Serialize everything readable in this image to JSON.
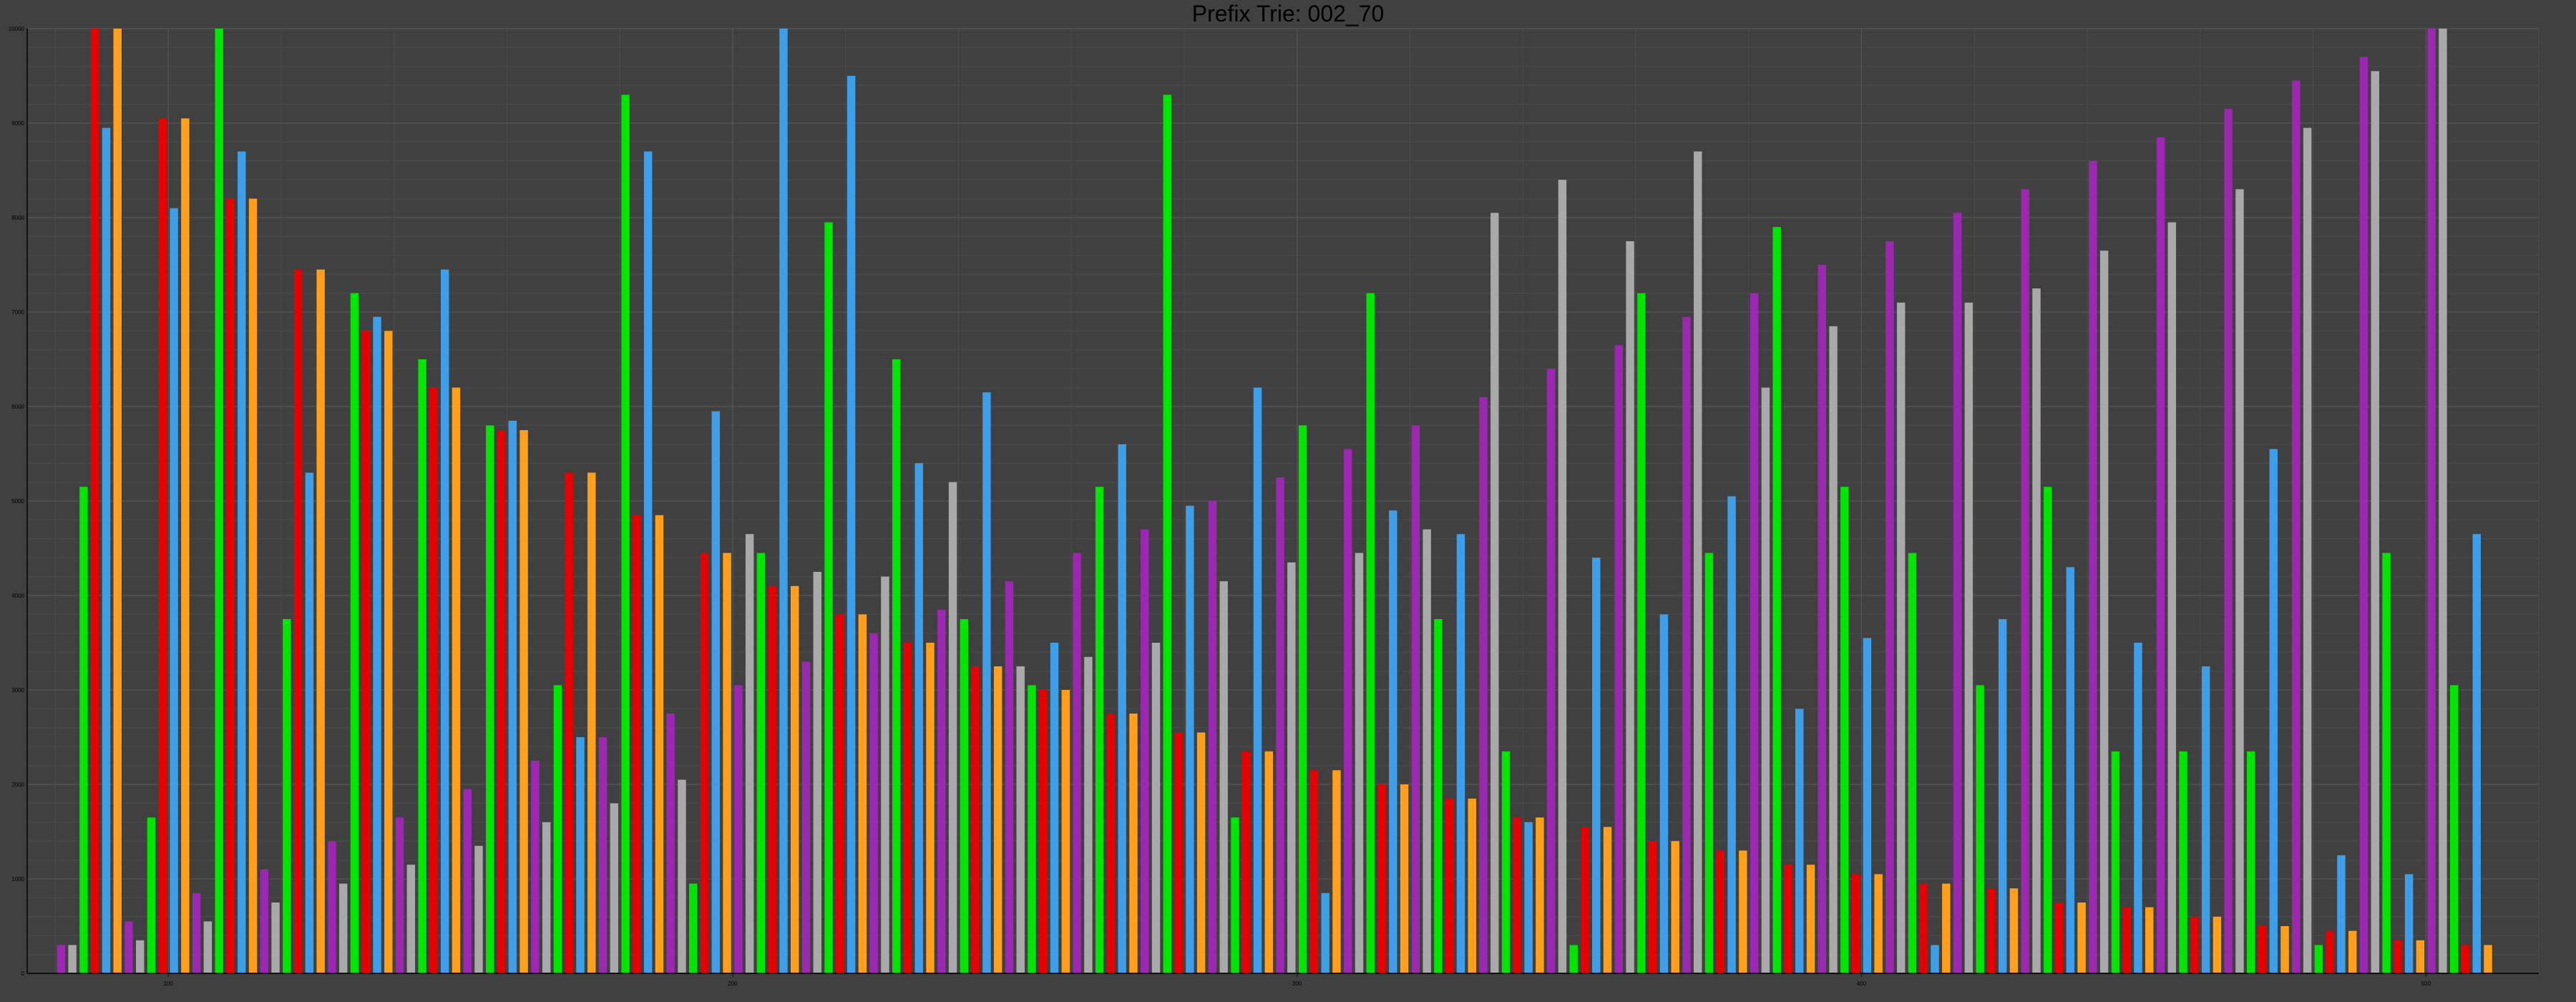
{
  "chart_data": {
    "type": "bar",
    "title": "Prefix Trie: 002_70",
    "xlabel": "",
    "ylabel": "",
    "ylim": [
      0,
      10000
    ],
    "y_ticks": [
      0,
      1000,
      2000,
      3000,
      4000,
      5000,
      6000,
      7000,
      8000,
      9000,
      10000
    ],
    "y_tick_labels": [
      "0",
      "1000",
      "2000",
      "3000",
      "4000",
      "5000",
      "6000",
      "7000",
      "8000",
      "9000",
      "10000"
    ],
    "x_ticks": [
      100,
      200,
      300,
      400,
      500
    ],
    "x_tick_labels": [
      "100",
      "200",
      "300",
      "400",
      "500"
    ],
    "grid": true,
    "legend": "none",
    "bars": [
      {
        "x": 81,
        "value": 300,
        "color": "purple"
      },
      {
        "x": 83,
        "value": 300,
        "color": "gray"
      },
      {
        "x": 85,
        "value": 5150,
        "color": "green"
      },
      {
        "x": 87,
        "value": 10000,
        "color": "red"
      },
      {
        "x": 89,
        "value": 8950,
        "color": "blue"
      },
      {
        "x": 91,
        "value": 10000,
        "color": "orange"
      },
      {
        "x": 93,
        "value": 550,
        "color": "purple"
      },
      {
        "x": 95,
        "value": 350,
        "color": "gray"
      },
      {
        "x": 97,
        "value": 1650,
        "color": "green"
      },
      {
        "x": 99,
        "value": 9050,
        "color": "red"
      },
      {
        "x": 101,
        "value": 8100,
        "color": "blue"
      },
      {
        "x": 103,
        "value": 9050,
        "color": "orange"
      },
      {
        "x": 105,
        "value": 850,
        "color": "purple"
      },
      {
        "x": 107,
        "value": 550,
        "color": "gray"
      },
      {
        "x": 109,
        "value": 10000,
        "color": "green"
      },
      {
        "x": 111,
        "value": 8200,
        "color": "red"
      },
      {
        "x": 113,
        "value": 8700,
        "color": "blue"
      },
      {
        "x": 115,
        "value": 8200,
        "color": "orange"
      },
      {
        "x": 117,
        "value": 1100,
        "color": "purple"
      },
      {
        "x": 119,
        "value": 750,
        "color": "gray"
      },
      {
        "x": 121,
        "value": 3750,
        "color": "green"
      },
      {
        "x": 123,
        "value": 7450,
        "color": "red"
      },
      {
        "x": 125,
        "value": 5300,
        "color": "blue"
      },
      {
        "x": 127,
        "value": 7450,
        "color": "orange"
      },
      {
        "x": 129,
        "value": 1400,
        "color": "purple"
      },
      {
        "x": 131,
        "value": 950,
        "color": "gray"
      },
      {
        "x": 133,
        "value": 7200,
        "color": "green"
      },
      {
        "x": 135,
        "value": 6800,
        "color": "red"
      },
      {
        "x": 137,
        "value": 6950,
        "color": "blue"
      },
      {
        "x": 139,
        "value": 6800,
        "color": "orange"
      },
      {
        "x": 141,
        "value": 1650,
        "color": "purple"
      },
      {
        "x": 143,
        "value": 1150,
        "color": "gray"
      },
      {
        "x": 145,
        "value": 6500,
        "color": "green"
      },
      {
        "x": 147,
        "value": 6200,
        "color": "red"
      },
      {
        "x": 149,
        "value": 7450,
        "color": "blue"
      },
      {
        "x": 151,
        "value": 6200,
        "color": "orange"
      },
      {
        "x": 153,
        "value": 1950,
        "color": "purple"
      },
      {
        "x": 155,
        "value": 1350,
        "color": "gray"
      },
      {
        "x": 157,
        "value": 5800,
        "color": "green"
      },
      {
        "x": 159,
        "value": 5750,
        "color": "red"
      },
      {
        "x": 161,
        "value": 5850,
        "color": "blue"
      },
      {
        "x": 163,
        "value": 5750,
        "color": "orange"
      },
      {
        "x": 165,
        "value": 2250,
        "color": "purple"
      },
      {
        "x": 167,
        "value": 1600,
        "color": "gray"
      },
      {
        "x": 169,
        "value": 3050,
        "color": "green"
      },
      {
        "x": 171,
        "value": 5300,
        "color": "red"
      },
      {
        "x": 173,
        "value": 2500,
        "color": "blue"
      },
      {
        "x": 175,
        "value": 5300,
        "color": "orange"
      },
      {
        "x": 177,
        "value": 2500,
        "color": "purple"
      },
      {
        "x": 179,
        "value": 1800,
        "color": "gray"
      },
      {
        "x": 181,
        "value": 9300,
        "color": "green"
      },
      {
        "x": 183,
        "value": 4850,
        "color": "red"
      },
      {
        "x": 185,
        "value": 8700,
        "color": "blue"
      },
      {
        "x": 187,
        "value": 4850,
        "color": "orange"
      },
      {
        "x": 189,
        "value": 2750,
        "color": "purple"
      },
      {
        "x": 191,
        "value": 2050,
        "color": "gray"
      },
      {
        "x": 193,
        "value": 950,
        "color": "green"
      },
      {
        "x": 195,
        "value": 4450,
        "color": "red"
      },
      {
        "x": 197,
        "value": 5950,
        "color": "blue"
      },
      {
        "x": 199,
        "value": 4450,
        "color": "orange"
      },
      {
        "x": 201,
        "value": 3050,
        "color": "purple"
      },
      {
        "x": 203,
        "value": 4650,
        "color": "gray"
      },
      {
        "x": 205,
        "value": 4450,
        "color": "green"
      },
      {
        "x": 207,
        "value": 4100,
        "color": "red"
      },
      {
        "x": 209,
        "value": 10000,
        "color": "blue"
      },
      {
        "x": 211,
        "value": 4100,
        "color": "orange"
      },
      {
        "x": 213,
        "value": 3300,
        "color": "purple"
      },
      {
        "x": 215,
        "value": 4250,
        "color": "gray"
      },
      {
        "x": 217,
        "value": 7950,
        "color": "green"
      },
      {
        "x": 219,
        "value": 3800,
        "color": "red"
      },
      {
        "x": 221,
        "value": 9500,
        "color": "blue"
      },
      {
        "x": 223,
        "value": 3800,
        "color": "orange"
      },
      {
        "x": 225,
        "value": 3600,
        "color": "purple"
      },
      {
        "x": 227,
        "value": 4200,
        "color": "gray"
      },
      {
        "x": 229,
        "value": 6500,
        "color": "green"
      },
      {
        "x": 231,
        "value": 3500,
        "color": "red"
      },
      {
        "x": 233,
        "value": 5400,
        "color": "blue"
      },
      {
        "x": 235,
        "value": 3500,
        "color": "orange"
      },
      {
        "x": 237,
        "value": 3850,
        "color": "purple"
      },
      {
        "x": 239,
        "value": 5200,
        "color": "gray"
      },
      {
        "x": 241,
        "value": 3750,
        "color": "green"
      },
      {
        "x": 243,
        "value": 3250,
        "color": "red"
      },
      {
        "x": 245,
        "value": 6150,
        "color": "blue"
      },
      {
        "x": 247,
        "value": 3250,
        "color": "orange"
      },
      {
        "x": 249,
        "value": 4150,
        "color": "purple"
      },
      {
        "x": 251,
        "value": 3250,
        "color": "gray"
      },
      {
        "x": 253,
        "value": 3050,
        "color": "green"
      },
      {
        "x": 255,
        "value": 3000,
        "color": "red"
      },
      {
        "x": 257,
        "value": 3500,
        "color": "blue"
      },
      {
        "x": 259,
        "value": 3000,
        "color": "orange"
      },
      {
        "x": 261,
        "value": 4450,
        "color": "purple"
      },
      {
        "x": 263,
        "value": 3350,
        "color": "gray"
      },
      {
        "x": 265,
        "value": 5150,
        "color": "green"
      },
      {
        "x": 267,
        "value": 2750,
        "color": "red"
      },
      {
        "x": 269,
        "value": 5600,
        "color": "blue"
      },
      {
        "x": 271,
        "value": 2750,
        "color": "orange"
      },
      {
        "x": 273,
        "value": 4700,
        "color": "purple"
      },
      {
        "x": 275,
        "value": 3500,
        "color": "gray"
      },
      {
        "x": 277,
        "value": 9300,
        "color": "green"
      },
      {
        "x": 279,
        "value": 2550,
        "color": "red"
      },
      {
        "x": 281,
        "value": 4950,
        "color": "blue"
      },
      {
        "x": 283,
        "value": 2550,
        "color": "orange"
      },
      {
        "x": 285,
        "value": 5000,
        "color": "purple"
      },
      {
        "x": 287,
        "value": 4150,
        "color": "gray"
      },
      {
        "x": 289,
        "value": 1650,
        "color": "green"
      },
      {
        "x": 291,
        "value": 2350,
        "color": "red"
      },
      {
        "x": 293,
        "value": 6200,
        "color": "blue"
      },
      {
        "x": 295,
        "value": 2350,
        "color": "orange"
      },
      {
        "x": 297,
        "value": 5250,
        "color": "purple"
      },
      {
        "x": 299,
        "value": 4350,
        "color": "gray"
      },
      {
        "x": 301,
        "value": 5800,
        "color": "green"
      },
      {
        "x": 303,
        "value": 2150,
        "color": "red"
      },
      {
        "x": 305,
        "value": 850,
        "color": "blue"
      },
      {
        "x": 307,
        "value": 2150,
        "color": "orange"
      },
      {
        "x": 309,
        "value": 5550,
        "color": "purple"
      },
      {
        "x": 311,
        "value": 4450,
        "color": "gray"
      },
      {
        "x": 313,
        "value": 7200,
        "color": "green"
      },
      {
        "x": 315,
        "value": 2000,
        "color": "red"
      },
      {
        "x": 317,
        "value": 4900,
        "color": "blue"
      },
      {
        "x": 319,
        "value": 2000,
        "color": "orange"
      },
      {
        "x": 321,
        "value": 5800,
        "color": "purple"
      },
      {
        "x": 323,
        "value": 4700,
        "color": "gray"
      },
      {
        "x": 325,
        "value": 3750,
        "color": "green"
      },
      {
        "x": 327,
        "value": 1850,
        "color": "red"
      },
      {
        "x": 329,
        "value": 4650,
        "color": "blue"
      },
      {
        "x": 331,
        "value": 1850,
        "color": "orange"
      },
      {
        "x": 333,
        "value": 6100,
        "color": "purple"
      },
      {
        "x": 335,
        "value": 8050,
        "color": "gray"
      },
      {
        "x": 337,
        "value": 2350,
        "color": "green"
      },
      {
        "x": 339,
        "value": 1650,
        "color": "red"
      },
      {
        "x": 341,
        "value": 1600,
        "color": "blue"
      },
      {
        "x": 343,
        "value": 1650,
        "color": "orange"
      },
      {
        "x": 345,
        "value": 6400,
        "color": "purple"
      },
      {
        "x": 347,
        "value": 8400,
        "color": "gray"
      },
      {
        "x": 349,
        "value": 300,
        "color": "green"
      },
      {
        "x": 351,
        "value": 1550,
        "color": "red"
      },
      {
        "x": 353,
        "value": 4400,
        "color": "blue"
      },
      {
        "x": 355,
        "value": 1550,
        "color": "orange"
      },
      {
        "x": 357,
        "value": 6650,
        "color": "purple"
      },
      {
        "x": 359,
        "value": 7750,
        "color": "gray"
      },
      {
        "x": 361,
        "value": 7200,
        "color": "green"
      },
      {
        "x": 363,
        "value": 1400,
        "color": "red"
      },
      {
        "x": 365,
        "value": 3800,
        "color": "blue"
      },
      {
        "x": 367,
        "value": 1400,
        "color": "orange"
      },
      {
        "x": 369,
        "value": 6950,
        "color": "purple"
      },
      {
        "x": 371,
        "value": 8700,
        "color": "gray"
      },
      {
        "x": 373,
        "value": 4450,
        "color": "green"
      },
      {
        "x": 375,
        "value": 1300,
        "color": "red"
      },
      {
        "x": 377,
        "value": 5050,
        "color": "blue"
      },
      {
        "x": 379,
        "value": 1300,
        "color": "orange"
      },
      {
        "x": 381,
        "value": 7200,
        "color": "purple"
      },
      {
        "x": 383,
        "value": 6200,
        "color": "gray"
      },
      {
        "x": 385,
        "value": 7900,
        "color": "green"
      },
      {
        "x": 387,
        "value": 1150,
        "color": "red"
      },
      {
        "x": 389,
        "value": 2800,
        "color": "blue"
      },
      {
        "x": 391,
        "value": 1150,
        "color": "orange"
      },
      {
        "x": 393,
        "value": 7500,
        "color": "purple"
      },
      {
        "x": 395,
        "value": 6850,
        "color": "gray"
      },
      {
        "x": 397,
        "value": 5150,
        "color": "green"
      },
      {
        "x": 399,
        "value": 1050,
        "color": "red"
      },
      {
        "x": 401,
        "value": 3550,
        "color": "blue"
      },
      {
        "x": 403,
        "value": 1050,
        "color": "orange"
      },
      {
        "x": 405,
        "value": 7750,
        "color": "purple"
      },
      {
        "x": 407,
        "value": 7100,
        "color": "gray"
      },
      {
        "x": 409,
        "value": 4450,
        "color": "green"
      },
      {
        "x": 411,
        "value": 950,
        "color": "red"
      },
      {
        "x": 413,
        "value": 300,
        "color": "blue"
      },
      {
        "x": 415,
        "value": 950,
        "color": "orange"
      },
      {
        "x": 417,
        "value": 8050,
        "color": "purple"
      },
      {
        "x": 419,
        "value": 7100,
        "color": "gray"
      },
      {
        "x": 421,
        "value": 3050,
        "color": "green"
      },
      {
        "x": 423,
        "value": 900,
        "color": "red"
      },
      {
        "x": 425,
        "value": 3750,
        "color": "blue"
      },
      {
        "x": 427,
        "value": 900,
        "color": "orange"
      },
      {
        "x": 429,
        "value": 8300,
        "color": "purple"
      },
      {
        "x": 431,
        "value": 7250,
        "color": "gray"
      },
      {
        "x": 433,
        "value": 5150,
        "color": "green"
      },
      {
        "x": 435,
        "value": 750,
        "color": "red"
      },
      {
        "x": 437,
        "value": 4300,
        "color": "blue"
      },
      {
        "x": 439,
        "value": 750,
        "color": "orange"
      },
      {
        "x": 441,
        "value": 8600,
        "color": "purple"
      },
      {
        "x": 443,
        "value": 7650,
        "color": "gray"
      },
      {
        "x": 445,
        "value": 2350,
        "color": "green"
      },
      {
        "x": 447,
        "value": 700,
        "color": "red"
      },
      {
        "x": 449,
        "value": 3500,
        "color": "blue"
      },
      {
        "x": 451,
        "value": 700,
        "color": "orange"
      },
      {
        "x": 453,
        "value": 8850,
        "color": "purple"
      },
      {
        "x": 455,
        "value": 7950,
        "color": "gray"
      },
      {
        "x": 457,
        "value": 2350,
        "color": "green"
      },
      {
        "x": 459,
        "value": 600,
        "color": "red"
      },
      {
        "x": 461,
        "value": 3250,
        "color": "blue"
      },
      {
        "x": 463,
        "value": 600,
        "color": "orange"
      },
      {
        "x": 465,
        "value": 9150,
        "color": "purple"
      },
      {
        "x": 467,
        "value": 8300,
        "color": "gray"
      },
      {
        "x": 469,
        "value": 2350,
        "color": "green"
      },
      {
        "x": 471,
        "value": 500,
        "color": "red"
      },
      {
        "x": 473,
        "value": 5550,
        "color": "blue"
      },
      {
        "x": 475,
        "value": 500,
        "color": "orange"
      },
      {
        "x": 477,
        "value": 9450,
        "color": "purple"
      },
      {
        "x": 479,
        "value": 8950,
        "color": "gray"
      },
      {
        "x": 481,
        "value": 300,
        "color": "green"
      },
      {
        "x": 483,
        "value": 450,
        "color": "red"
      },
      {
        "x": 485,
        "value": 1250,
        "color": "blue"
      },
      {
        "x": 487,
        "value": 450,
        "color": "orange"
      },
      {
        "x": 489,
        "value": 9700,
        "color": "purple"
      },
      {
        "x": 491,
        "value": 9550,
        "color": "gray"
      },
      {
        "x": 493,
        "value": 4450,
        "color": "green"
      },
      {
        "x": 495,
        "value": 350,
        "color": "red"
      },
      {
        "x": 497,
        "value": 1050,
        "color": "blue"
      },
      {
        "x": 499,
        "value": 350,
        "color": "orange"
      },
      {
        "x": 501,
        "value": 10000,
        "color": "purple"
      },
      {
        "x": 503,
        "value": 10000,
        "color": "gray"
      },
      {
        "x": 505,
        "value": 3050,
        "color": "green"
      },
      {
        "x": 507,
        "value": 300,
        "color": "red"
      },
      {
        "x": 509,
        "value": 4650,
        "color": "blue"
      },
      {
        "x": 511,
        "value": 300,
        "color": "orange"
      }
    ],
    "xlim": [
      75,
      520
    ]
  },
  "palette": {
    "background": "#404040",
    "grid": "#4c4c4c",
    "axis": "#111111",
    "purple": "#9c27b0",
    "gray": "#a9a9a9",
    "green": "#00e600",
    "red": "#e60000",
    "blue": "#3f9ee8",
    "orange": "#ff9f1c",
    "title_color": "#000000",
    "tick_color": "#000000"
  }
}
